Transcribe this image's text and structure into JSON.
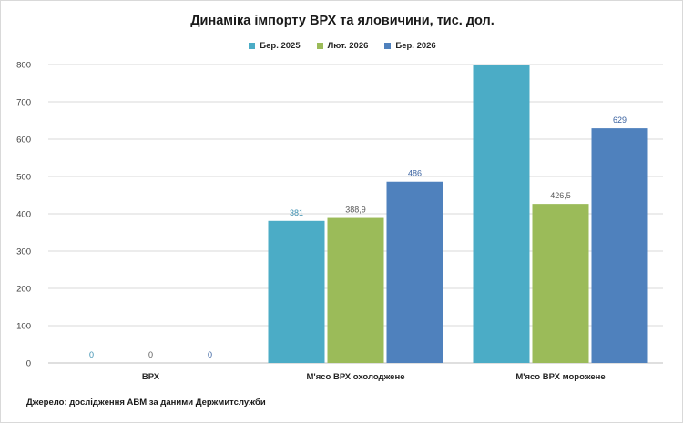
{
  "chart_data": {
    "type": "bar",
    "title": "Динаміка імпорту ВРХ та яловичини, тис. дол.",
    "categories": [
      "ВРХ",
      "М'ясо  ВРХ охолоджене",
      "М'ясо  ВРХ морожене"
    ],
    "series": [
      {
        "name": "Бер. 2025",
        "values": [
          0,
          381,
          800
        ],
        "labels": [
          "0",
          "381",
          ""
        ],
        "color": "#4BACC6",
        "label_color": "#3b8fb0"
      },
      {
        "name": "Лют. 2026",
        "values": [
          0,
          388.9,
          426.5
        ],
        "labels": [
          "0",
          "388,9",
          "426,5"
        ],
        "color": "#9BBB59",
        "label_color": "#595959"
      },
      {
        "name": "Бер. 2026",
        "values": [
          0,
          486,
          629
        ],
        "labels": [
          "0",
          "486",
          "629"
        ],
        "color": "#4F81BD",
        "label_color": "#3a62a0"
      }
    ],
    "ylim": [
      0,
      800
    ],
    "yticks": [
      0,
      100,
      200,
      300,
      400,
      500,
      600,
      700,
      800
    ],
    "grid": true,
    "legend_position": "top"
  },
  "source_note": "Джерело: дослідження АВМ за даними  Держмитслужби"
}
